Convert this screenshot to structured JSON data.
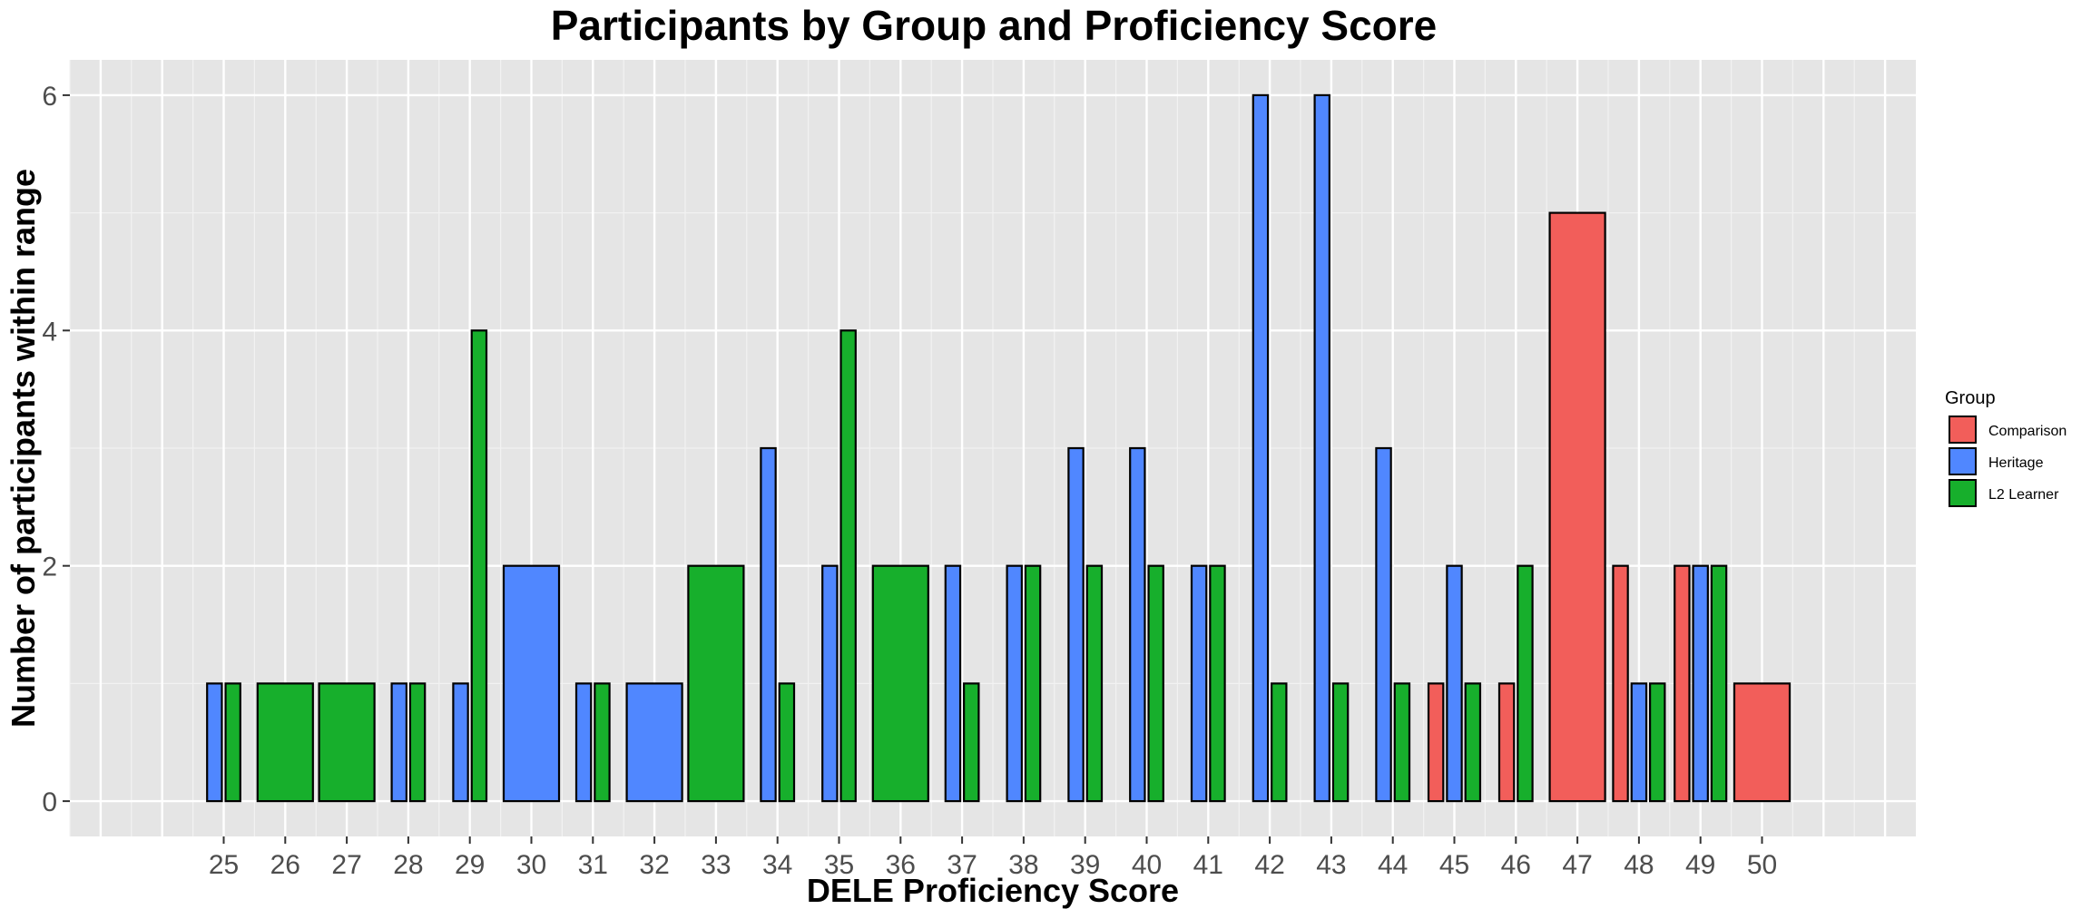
{
  "chart_data": {
    "type": "bar",
    "title": "Participants by Group and Proficiency Score",
    "xlabel": "DELE Proficiency Score",
    "ylabel": "Number of participants within range",
    "categories": [
      25,
      26,
      27,
      28,
      29,
      30,
      31,
      32,
      33,
      34,
      35,
      36,
      37,
      38,
      39,
      40,
      41,
      42,
      43,
      44,
      45,
      46,
      47,
      48,
      49,
      50
    ],
    "xlim": [
      22.5,
      52.5
    ],
    "ylim": [
      -0.3,
      6.3
    ],
    "yticks": [
      0,
      2,
      4,
      6
    ],
    "grid": true,
    "legend": {
      "title": "Group",
      "position": "right"
    },
    "series": [
      {
        "name": "Comparison",
        "color": "#F25E5A",
        "values": [
          0,
          0,
          0,
          0,
          0,
          0,
          0,
          0,
          0,
          0,
          0,
          0,
          0,
          0,
          0,
          0,
          0,
          0,
          0,
          0,
          1,
          1,
          5,
          2,
          2,
          1
        ]
      },
      {
        "name": "Heritage",
        "color": "#5087FF",
        "values": [
          1,
          0,
          0,
          1,
          1,
          2,
          1,
          1,
          0,
          3,
          2,
          0,
          2,
          2,
          3,
          3,
          2,
          6,
          6,
          3,
          2,
          0,
          0,
          1,
          2,
          0
        ]
      },
      {
        "name": "L2 Learner",
        "color": "#17AF2C",
        "values": [
          1,
          1,
          1,
          1,
          4,
          0,
          1,
          0,
          2,
          1,
          4,
          2,
          1,
          2,
          2,
          2,
          2,
          1,
          1,
          1,
          1,
          2,
          0,
          1,
          2,
          0
        ]
      }
    ]
  }
}
